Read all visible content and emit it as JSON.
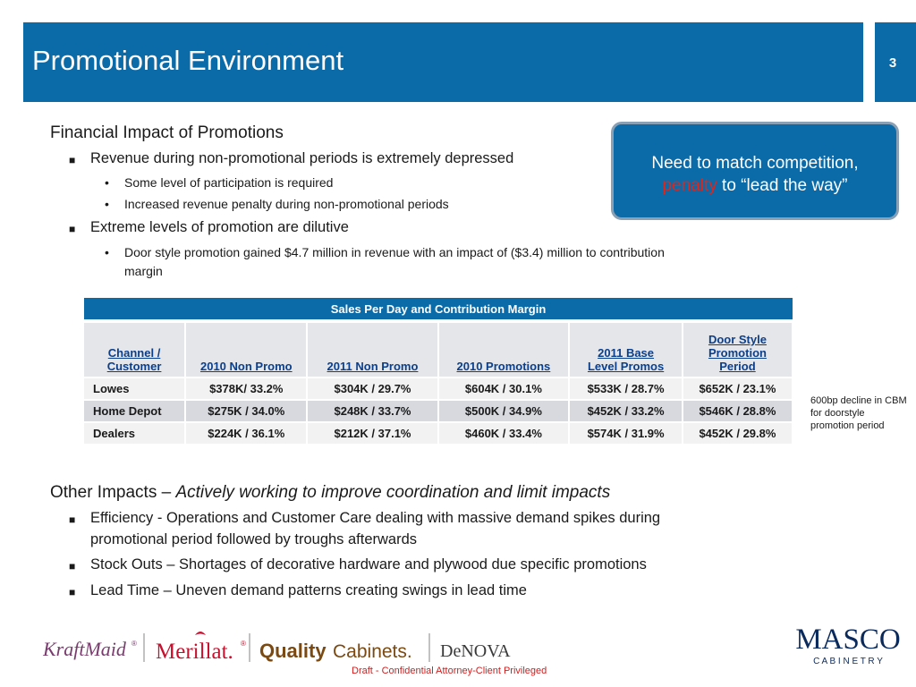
{
  "header": {
    "title": "Promotional Environment",
    "page_number": "3"
  },
  "section1": {
    "heading": "Financial Impact of Promotions",
    "bullets": [
      {
        "text": "Revenue during non-promotional periods is extremely depressed",
        "subs": [
          "Some level of participation is required",
          "Increased revenue penalty during non-promotional periods"
        ]
      },
      {
        "text": "Extreme levels of promotion are dilutive",
        "subs": [
          "Door style promotion gained $4.7 million in revenue with an impact of ($3.4) million to contribution",
          "margin"
        ]
      }
    ]
  },
  "callout": {
    "line1": "Need to match competition,",
    "red_word": "penalty",
    "line2_rest": " to “lead the way”"
  },
  "table": {
    "caption": "Sales Per Day and Contribution Margin",
    "headers": [
      [
        "Channel /",
        "Customer"
      ],
      [
        "2010 Non Promo"
      ],
      [
        "2011 Non Promo"
      ],
      [
        "2010 Promotions"
      ],
      [
        "2011 Base",
        "Level Promos"
      ],
      [
        "Door Style",
        "Promotion",
        "Period"
      ]
    ],
    "rows": [
      [
        "Lowes",
        "$378K/  33.2%",
        "$304K / 29.7%",
        "$604K / 30.1%",
        "$533K / 28.7%",
        "$652K / 23.1%"
      ],
      [
        "Home Depot",
        "$275K / 34.0%",
        "$248K / 33.7%",
        "$500K / 34.9%",
        "$452K / 33.2%",
        "$546K / 28.8%"
      ],
      [
        "Dealers",
        "$224K / 36.1%",
        "$212K / 37.1%",
        "$460K / 33.4%",
        "$574K / 31.9%",
        "$452K / 29.8%"
      ]
    ]
  },
  "side_note": "600bp decline in CBM for doorstyle promotion period",
  "section2": {
    "heading_plain": "Other Impacts – ",
    "heading_italic": "Actively working to improve coordination and limit impacts",
    "bullets": [
      "Efficiency - Operations  and Customer Care dealing with massive demand spikes during",
      "promotional period followed by troughs afterwards",
      "Stock Outs – Shortages of decorative hardware and plywood due specific promotions",
      "Lead Time – Uneven demand patterns creating swings in lead time"
    ]
  },
  "logos": {
    "kraftmaid": "KraftMaid",
    "merillat": "Merillat.",
    "quality_bold": "Quality",
    "quality_rest": "Cabinets.",
    "denova": "DeNOVA",
    "masco": "MASCO",
    "cabinetry": "C A B I N E T R Y",
    "colors": {
      "kraftmaid": "#7a3b6e",
      "merillat": "#c8102e",
      "quality": "#7b4a12",
      "denova": "#3a3a3a",
      "masco": "#0b2a5c"
    }
  },
  "footer": "Draft - Confidential   Attorney-Client Privileged"
}
